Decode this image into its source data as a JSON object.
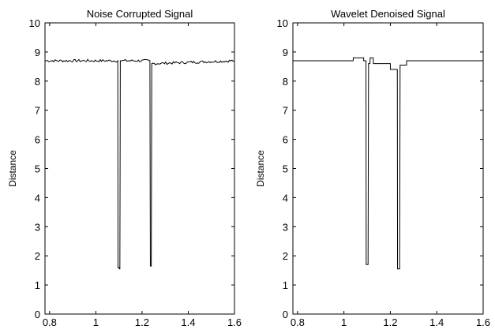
{
  "chart_data": [
    {
      "type": "line",
      "title": "Noise Corrupted Signal",
      "xlabel": "",
      "ylabel": "Distance",
      "xlim": [
        0.78,
        1.6
      ],
      "ylim": [
        0,
        10
      ],
      "xticks": [
        "0.8",
        "1",
        "1.2",
        "1.4",
        "1.6"
      ],
      "yticks": [
        "0",
        "1",
        "2",
        "3",
        "4",
        "5",
        "6",
        "7",
        "8",
        "9",
        "10"
      ],
      "grid": false,
      "noisy": true,
      "series": [
        {
          "values": [
            [
              0.78,
              8.7
            ],
            [
              1.095,
              8.7
            ],
            [
              1.096,
              1.6
            ],
            [
              1.1,
              1.6
            ],
            [
              1.102,
              1.55
            ],
            [
              1.104,
              1.55
            ],
            [
              1.106,
              8.7
            ],
            [
              1.234,
              8.7
            ],
            [
              1.236,
              1.65
            ],
            [
              1.24,
              1.65
            ],
            [
              1.242,
              8.6
            ],
            [
              1.6,
              8.7
            ]
          ]
        }
      ]
    },
    {
      "type": "line",
      "title": "Wavelet Denoised Signal",
      "xlabel": "",
      "ylabel": "Distance",
      "xlim": [
        0.78,
        1.6
      ],
      "ylim": [
        0,
        10
      ],
      "xticks": [
        "0.8",
        "1",
        "1.2",
        "1.4",
        "1.6"
      ],
      "yticks": [
        "0",
        "1",
        "2",
        "3",
        "4",
        "5",
        "6",
        "7",
        "8",
        "9",
        "10"
      ],
      "grid": false,
      "noisy": false,
      "series": [
        {
          "values": [
            [
              0.78,
              8.7
            ],
            [
              1.04,
              8.7
            ],
            [
              1.04,
              8.8
            ],
            [
              1.085,
              8.8
            ],
            [
              1.085,
              8.7
            ],
            [
              1.095,
              8.7
            ],
            [
              1.096,
              1.7
            ],
            [
              1.104,
              1.7
            ],
            [
              1.106,
              8.6
            ],
            [
              1.112,
              8.6
            ],
            [
              1.113,
              8.8
            ],
            [
              1.126,
              8.8
            ],
            [
              1.127,
              8.6
            ],
            [
              1.2,
              8.6
            ],
            [
              1.2,
              8.4
            ],
            [
              1.23,
              8.4
            ],
            [
              1.231,
              1.55
            ],
            [
              1.24,
              1.55
            ],
            [
              1.242,
              8.55
            ],
            [
              1.27,
              8.55
            ],
            [
              1.27,
              8.7
            ],
            [
              1.6,
              8.7
            ]
          ]
        }
      ]
    }
  ]
}
